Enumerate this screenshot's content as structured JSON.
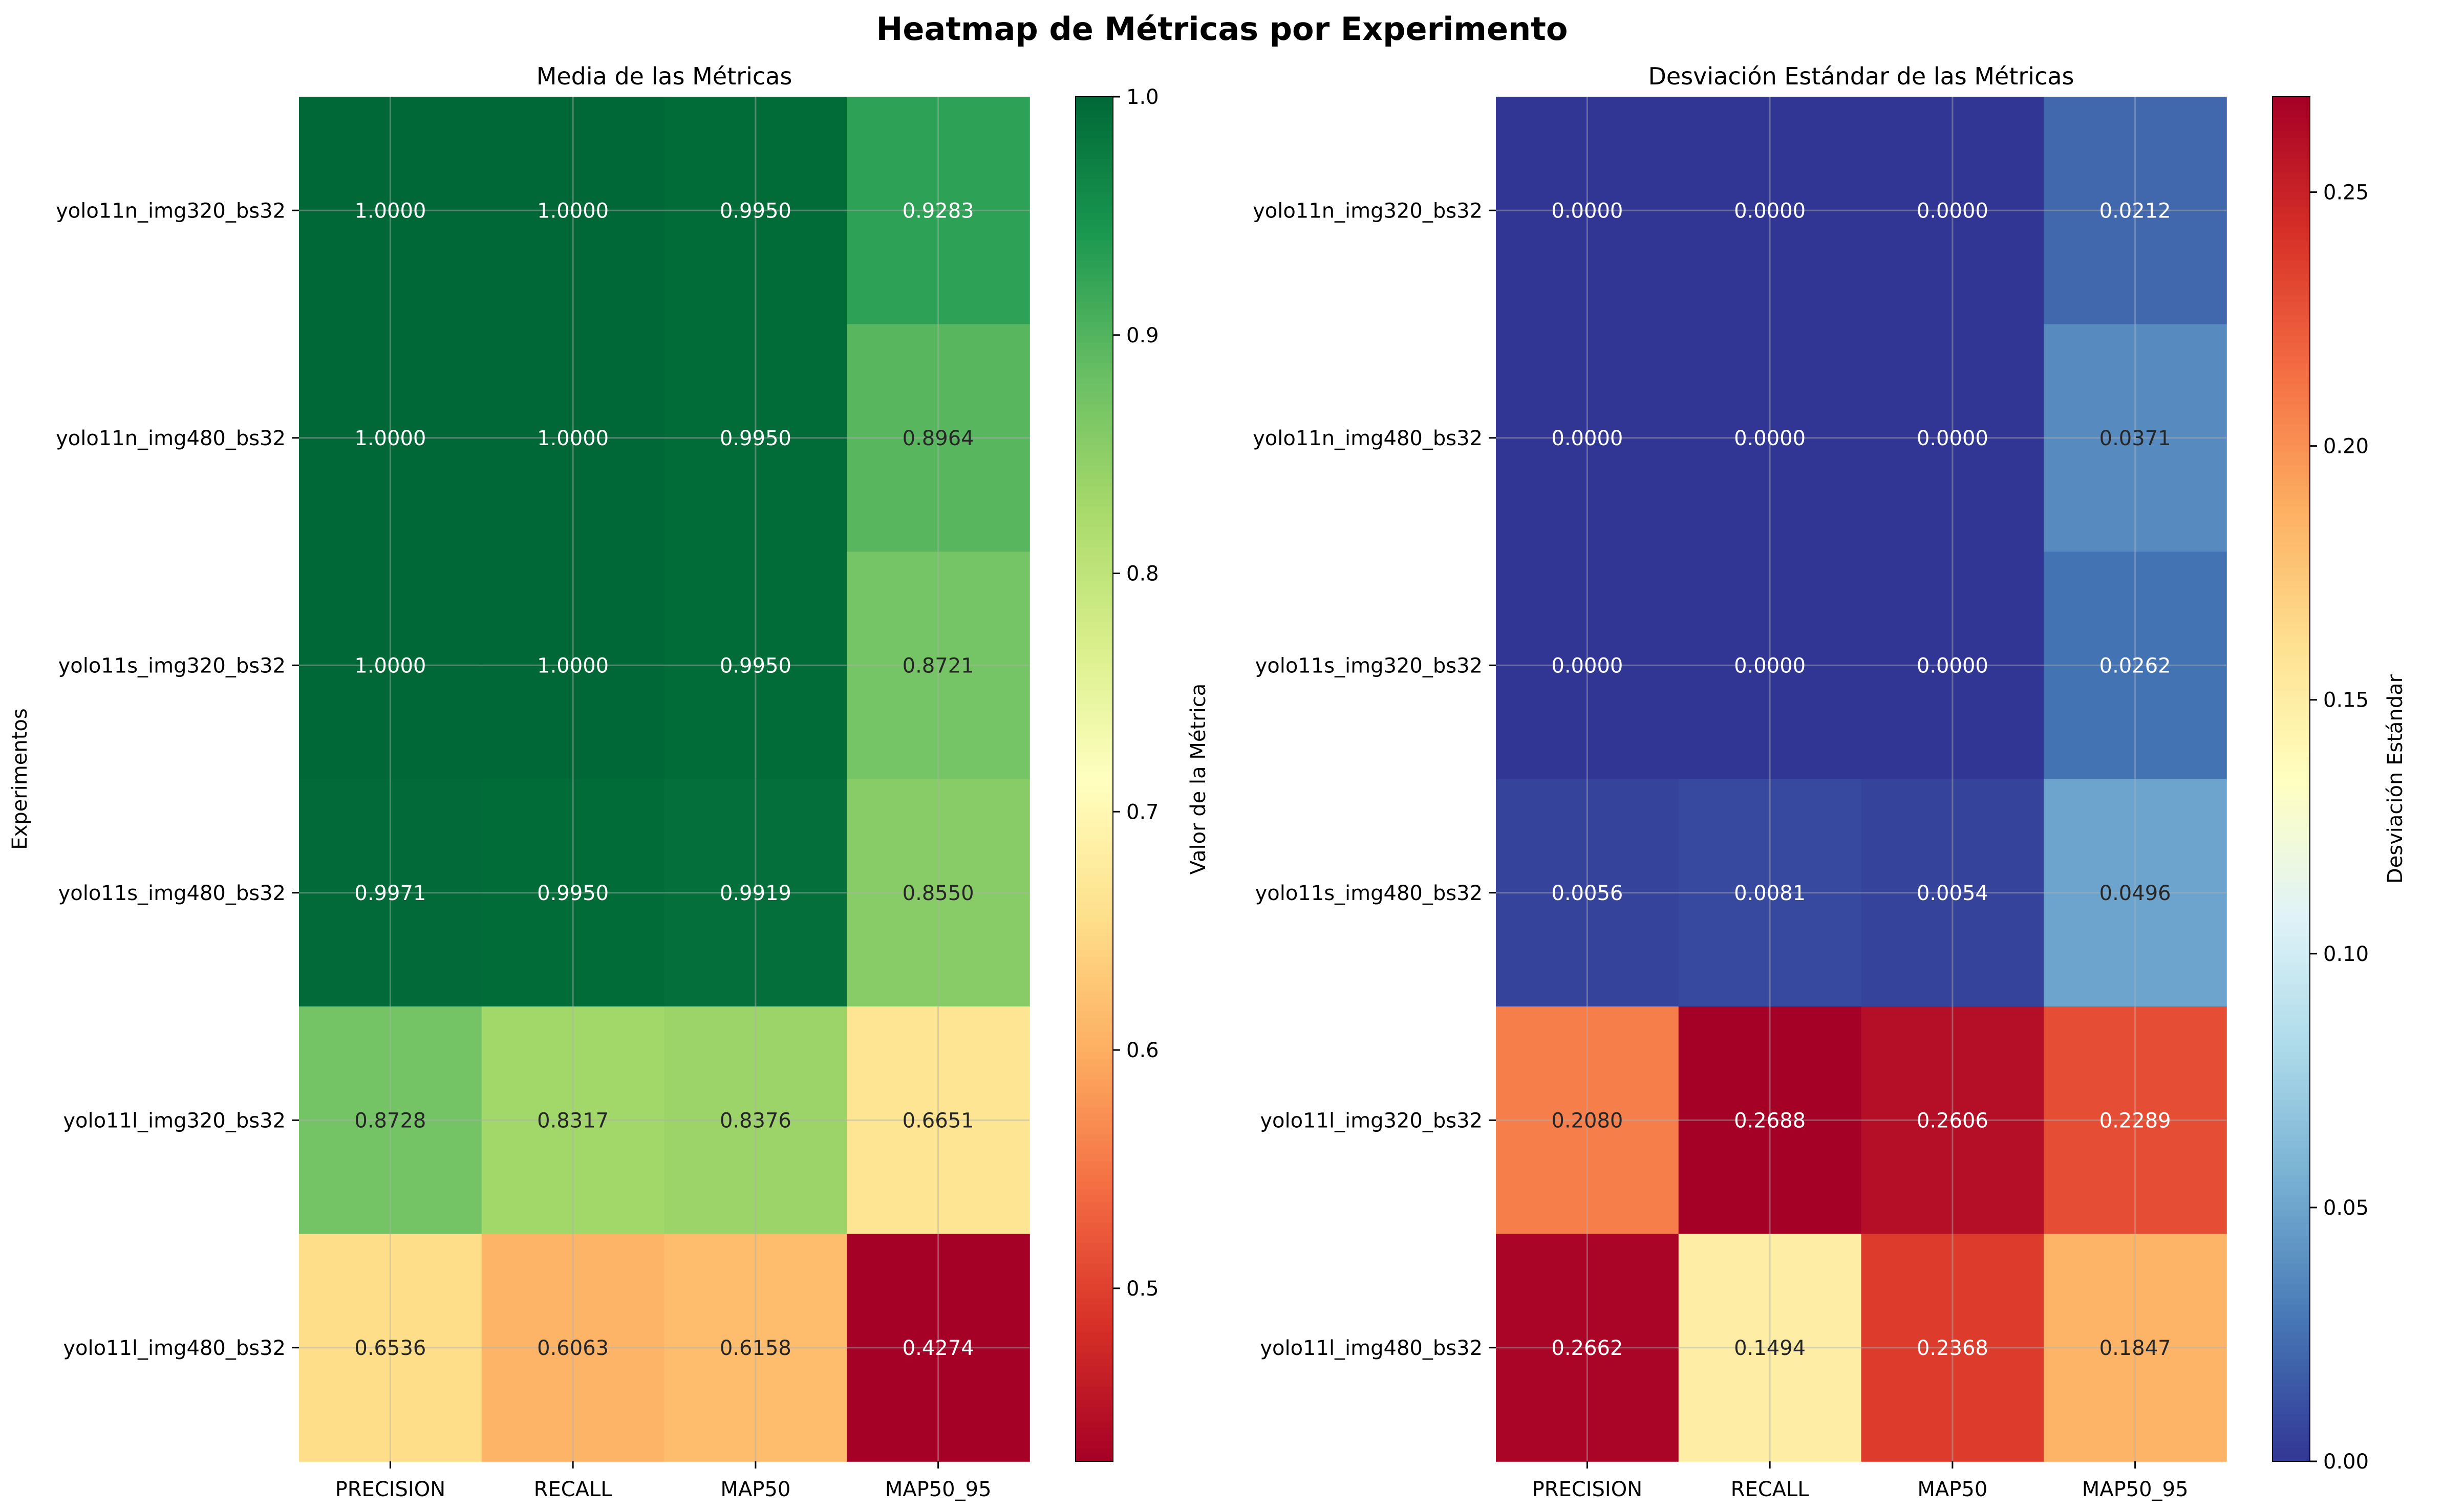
{
  "figure_title": "Heatmap de Métricas por Experimento",
  "chart_data": [
    {
      "type": "heatmap",
      "title": "Media de las Métricas",
      "xlabel": "",
      "ylabel": "Experimentos",
      "columns": [
        "PRECISION",
        "RECALL",
        "MAP50",
        "MAP50_95"
      ],
      "rows": [
        "yolo11n_img320_bs32",
        "yolo11n_img480_bs32",
        "yolo11s_img320_bs32",
        "yolo11s_img480_bs32",
        "yolo11l_img320_bs32",
        "yolo11l_img480_bs32"
      ],
      "values": [
        [
          1.0,
          1.0,
          0.995,
          0.9283
        ],
        [
          1.0,
          1.0,
          0.995,
          0.8964
        ],
        [
          1.0,
          1.0,
          0.995,
          0.8721
        ],
        [
          0.9971,
          0.995,
          0.9919,
          0.855
        ],
        [
          0.8728,
          0.8317,
          0.8376,
          0.6651
        ],
        [
          0.6536,
          0.6063,
          0.6158,
          0.4274
        ]
      ],
      "value_labels": [
        [
          "1.0000",
          "1.0000",
          "0.9950",
          "0.9283"
        ],
        [
          "1.0000",
          "1.0000",
          "0.9950",
          "0.8964"
        ],
        [
          "1.0000",
          "1.0000",
          "0.9950",
          "0.8721"
        ],
        [
          "0.9971",
          "0.9950",
          "0.9919",
          "0.8550"
        ],
        [
          "0.8728",
          "0.8317",
          "0.8376",
          "0.6651"
        ],
        [
          "0.6536",
          "0.6063",
          "0.6158",
          "0.4274"
        ]
      ],
      "colormap": "RdYlGn",
      "vmin": 0.4274,
      "vmax": 1.0,
      "colorbar": {
        "label": "Valor de la Métrica",
        "ticks": [
          0.5,
          0.6,
          0.7,
          0.8,
          0.9,
          1.0
        ],
        "tick_labels": [
          "0.5",
          "0.6",
          "0.7",
          "0.8",
          "0.9",
          "1.0"
        ]
      },
      "grid": true
    },
    {
      "type": "heatmap",
      "title": "Desviación Estándar de las Métricas",
      "xlabel": "",
      "ylabel": "",
      "columns": [
        "PRECISION",
        "RECALL",
        "MAP50",
        "MAP50_95"
      ],
      "rows": [
        "yolo11n_img320_bs32",
        "yolo11n_img480_bs32",
        "yolo11s_img320_bs32",
        "yolo11s_img480_bs32",
        "yolo11l_img320_bs32",
        "yolo11l_img480_bs32"
      ],
      "values": [
        [
          0.0,
          0.0,
          0.0,
          0.0212
        ],
        [
          0.0,
          0.0,
          0.0,
          0.0371
        ],
        [
          0.0,
          0.0,
          0.0,
          0.0262
        ],
        [
          0.0056,
          0.0081,
          0.0054,
          0.0496
        ],
        [
          0.208,
          0.2688,
          0.2606,
          0.2289
        ],
        [
          0.2662,
          0.1494,
          0.2368,
          0.1847
        ]
      ],
      "value_labels": [
        [
          "0.0000",
          "0.0000",
          "0.0000",
          "0.0212"
        ],
        [
          "0.0000",
          "0.0000",
          "0.0000",
          "0.0371"
        ],
        [
          "0.0000",
          "0.0000",
          "0.0000",
          "0.0262"
        ],
        [
          "0.0056",
          "0.0081",
          "0.0054",
          "0.0496"
        ],
        [
          "0.2080",
          "0.2688",
          "0.2606",
          "0.2289"
        ],
        [
          "0.2662",
          "0.1494",
          "0.2368",
          "0.1847"
        ]
      ],
      "colormap": "RdYlBu_r",
      "vmin": 0.0,
      "vmax": 0.2688,
      "colorbar": {
        "label": "Desviación Estándar",
        "ticks": [
          0.0,
          0.05,
          0.1,
          0.15,
          0.2,
          0.25
        ],
        "tick_labels": [
          "0.00",
          "0.05",
          "0.10",
          "0.15",
          "0.20",
          "0.25"
        ]
      },
      "grid": true
    }
  ]
}
